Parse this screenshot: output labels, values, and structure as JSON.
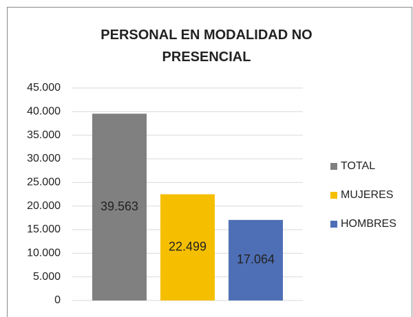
{
  "chart_data": {
    "type": "bar",
    "title": "PERSONAL EN MODALIDAD NO PRESENCIAL",
    "categories": [
      null
    ],
    "series": [
      {
        "name": "TOTAL",
        "color": "#808080",
        "values": [
          39563
        ],
        "value_labels": [
          "39.563"
        ]
      },
      {
        "name": "MUJERES",
        "color": "#f5bf00",
        "values": [
          22499
        ],
        "value_labels": [
          "22.499"
        ]
      },
      {
        "name": "HOMBRES",
        "color": "#4e6fb5",
        "values": [
          17064
        ],
        "value_labels": [
          "17.064"
        ]
      }
    ],
    "ylim": [
      0,
      45000
    ],
    "yticks": [
      0,
      {
        "value": 5000,
        "label": "5.000"
      },
      {
        "value": 10000,
        "label": "10.000"
      },
      {
        "value": 15000,
        "label": "15.000"
      },
      {
        "value": 20000,
        "label": "20.000"
      },
      {
        "value": 25000,
        "label": "25.000"
      },
      {
        "value": 30000,
        "label": "30.000"
      },
      {
        "value": 35000,
        "label": "35.000"
      },
      {
        "value": 40000,
        "label": "40.000"
      },
      {
        "value": 45000,
        "label": "45.000"
      }
    ],
    "grid": true,
    "legend": "right"
  }
}
